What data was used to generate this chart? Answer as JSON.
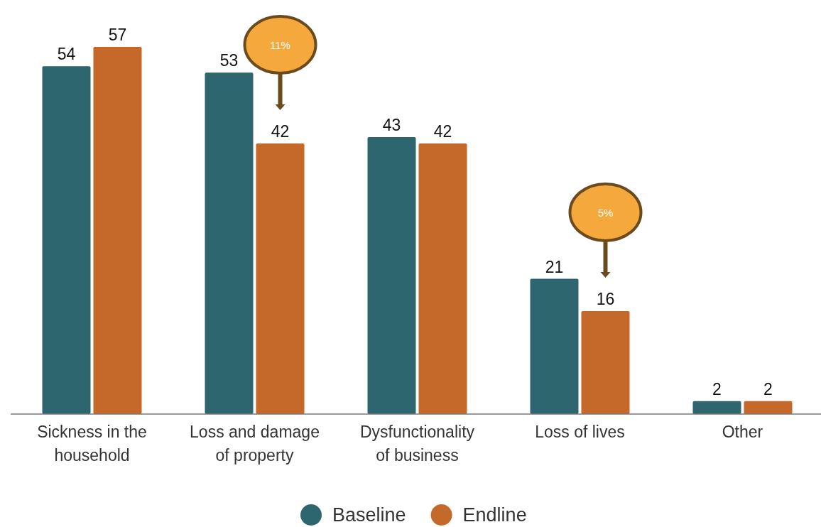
{
  "chart_data": {
    "type": "bar",
    "categories": [
      "Sickness in the household",
      "Loss and damage of property",
      "Dysfunctionality of business",
      "Loss of lives",
      "Other"
    ],
    "series": [
      {
        "name": "Baseline",
        "color": "#2e6670",
        "values": [
          54,
          53,
          43,
          21,
          2
        ]
      },
      {
        "name": "Endline",
        "color": "#c4692a",
        "values": [
          57,
          42,
          42,
          16,
          2
        ]
      }
    ],
    "data_labels": true,
    "legend": "bottom",
    "annotations": [
      "11%",
      "5%"
    ]
  }
}
